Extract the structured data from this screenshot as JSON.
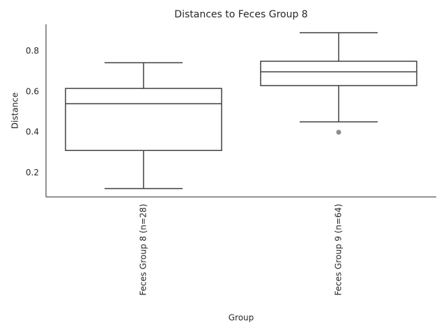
{
  "chart_data": {
    "type": "box",
    "title": "Distances to Feces Group 8",
    "xlabel": "Group",
    "ylabel": "Distance",
    "categories": [
      "Feces Group 8 (n=28)",
      "Feces Group 9 (n=64)"
    ],
    "whisker_low": [
      0.122,
      0.451
    ],
    "q1": [
      0.31,
      0.63
    ],
    "median": [
      0.541,
      0.698
    ],
    "q3": [
      0.616,
      0.75
    ],
    "whisker_high": [
      0.743,
      0.891
    ],
    "outliers": [
      [],
      [
        0.4
      ]
    ],
    "color": "#ffffff",
    "line_color": "#3f3f3f",
    "outlier_color": "#8c8c8c",
    "ylim": [
      0.081,
      0.932
    ],
    "yticks": [
      0.2,
      0.4,
      0.6,
      0.8
    ],
    "grid": false
  }
}
